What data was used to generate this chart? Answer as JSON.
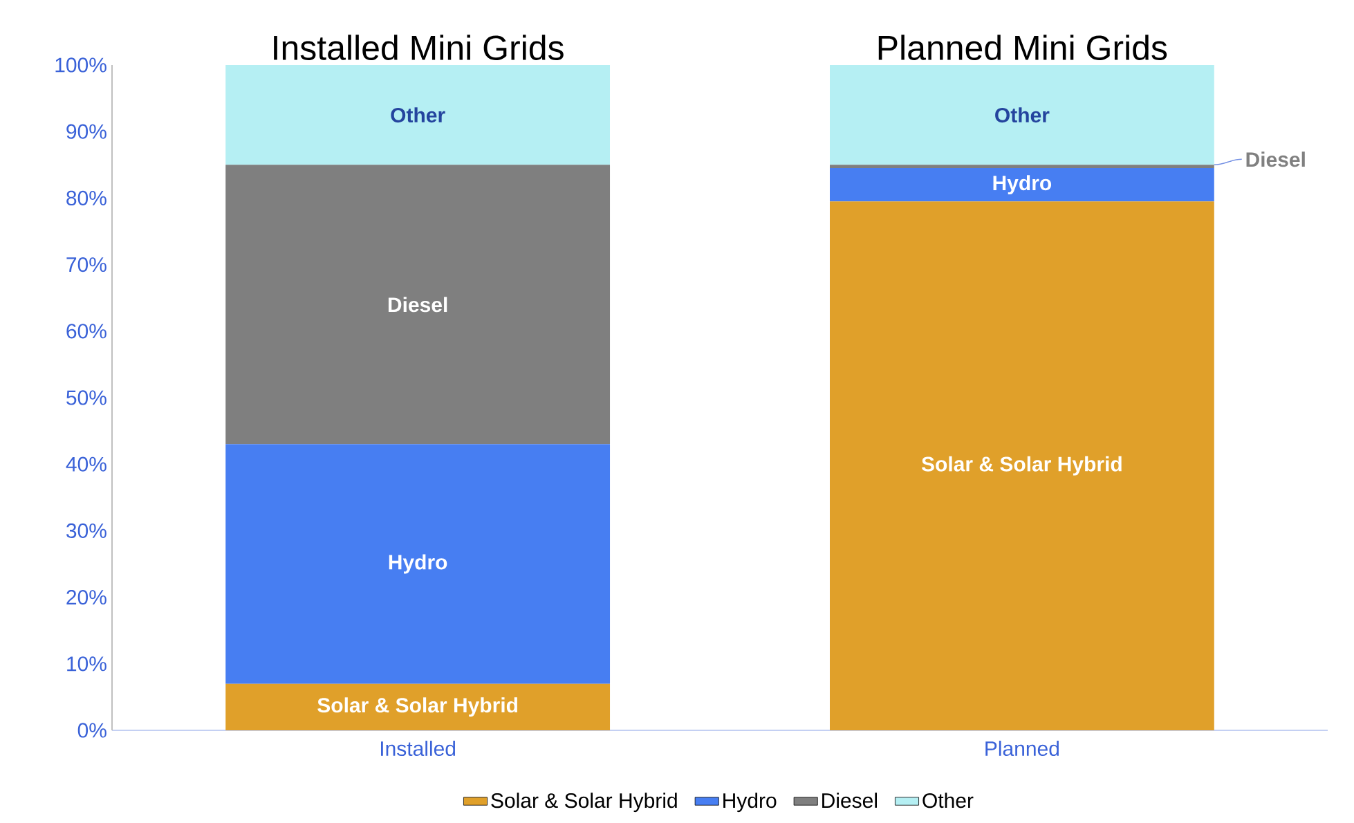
{
  "chart_data": {
    "type": "bar",
    "stacked": true,
    "categories": [
      "Installed",
      "Planned"
    ],
    "series": [
      {
        "name": "Solar & Solar Hybrid",
        "color": "#e0a02a",
        "values": [
          7,
          79.5
        ]
      },
      {
        "name": "Hydro",
        "color": "#477ef2",
        "values": [
          36,
          5
        ]
      },
      {
        "name": "Diesel",
        "color": "#7f7f7f",
        "values": [
          42,
          0.5
        ]
      },
      {
        "name": "Other",
        "color": "#b5eff3",
        "values": [
          15,
          15
        ]
      }
    ],
    "ylim": [
      0,
      100
    ],
    "yticks": [
      {
        "value": 0,
        "label": "0%"
      },
      {
        "value": 10,
        "label": "10%"
      },
      {
        "value": 20,
        "label": "20%"
      },
      {
        "value": 30,
        "label": "30%"
      },
      {
        "value": 40,
        "label": "40%"
      },
      {
        "value": 50,
        "label": "50%"
      },
      {
        "value": 60,
        "label": "60%"
      },
      {
        "value": 70,
        "label": "70%"
      },
      {
        "value": 80,
        "label": "80%"
      },
      {
        "value": 90,
        "label": "90%"
      },
      {
        "value": 100,
        "label": "100%"
      }
    ],
    "annotations": [
      "Installed Mini Grids",
      "Planned Mini Grids"
    ],
    "grid": false,
    "legend": "bottom"
  }
}
